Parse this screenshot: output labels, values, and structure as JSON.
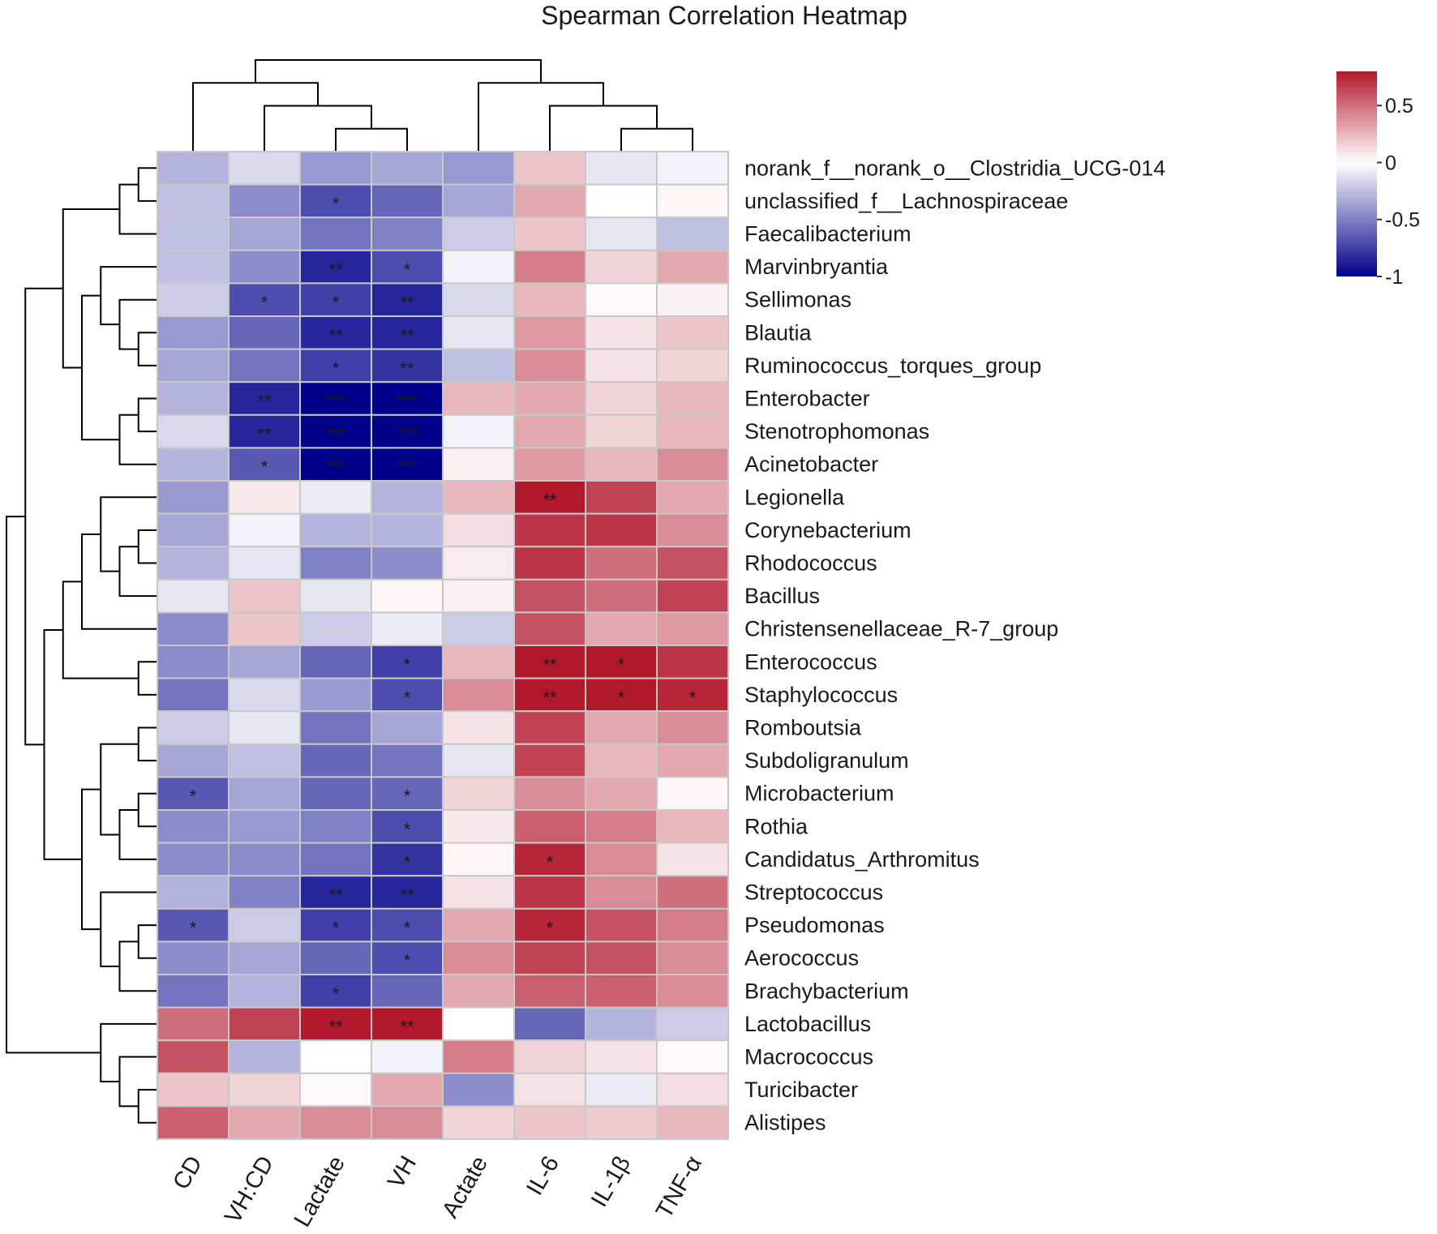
{
  "chart_data": {
    "type": "heatmap",
    "title": "Spearman Correlation Heatmap",
    "columns": [
      "CD",
      "VH:CD",
      "Lactate",
      "VH",
      "Actate",
      "IL-6",
      "IL-1β",
      "TNF-α"
    ],
    "rows": [
      "norank_f__norank_o__Clostridia_UCG-014",
      "unclassified_f__Lachnospiraceae",
      "Faecalibacterium",
      "Marvinbryantia",
      "Sellimonas",
      "Blautia",
      "Ruminococcus_torques_group",
      "Enterobacter",
      "Stenotrophomonas",
      "Acinetobacter",
      "Legionella",
      "Corynebacterium",
      "Rhodococcus",
      "Bacillus",
      "Christensenellaceae_R-7_group",
      "Enterococcus",
      "Staphylococcus",
      "Romboutsia",
      "Subdoligranulum",
      "Microbacterium",
      "Rothia",
      "Candidatus_Arthromitus",
      "Streptococcus",
      "Pseudomonas",
      "Aerococcus",
      "Brachybacterium",
      "Lactobacillus",
      "Macrococcus",
      "Turicibacter",
      "Alistipes"
    ],
    "values": [
      [
        -0.3,
        -0.15,
        -0.4,
        -0.35,
        -0.4,
        0.2,
        -0.1,
        -0.05
      ],
      [
        -0.25,
        -0.45,
        -0.7,
        -0.6,
        -0.35,
        0.3,
        0.0,
        0.03
      ],
      [
        -0.25,
        -0.35,
        -0.55,
        -0.5,
        -0.2,
        0.2,
        -0.1,
        -0.25
      ],
      [
        -0.25,
        -0.45,
        -0.85,
        -0.7,
        -0.05,
        0.45,
        0.15,
        0.3
      ],
      [
        -0.2,
        -0.7,
        -0.75,
        -0.85,
        -0.15,
        0.25,
        0.02,
        0.05
      ],
      [
        -0.4,
        -0.6,
        -0.85,
        -0.85,
        -0.1,
        0.35,
        0.1,
        0.2
      ],
      [
        -0.35,
        -0.55,
        -0.75,
        -0.8,
        -0.25,
        0.4,
        0.1,
        0.15
      ],
      [
        -0.3,
        -0.85,
        -1.0,
        -1.0,
        0.25,
        0.3,
        0.15,
        0.25
      ],
      [
        -0.15,
        -0.85,
        -1.0,
        -1.0,
        -0.05,
        0.3,
        0.15,
        0.25
      ],
      [
        -0.3,
        -0.65,
        -1.0,
        -1.0,
        0.05,
        0.35,
        0.25,
        0.4
      ],
      [
        -0.4,
        0.08,
        -0.08,
        -0.3,
        0.25,
        0.85,
        0.65,
        0.3
      ],
      [
        -0.35,
        -0.05,
        -0.3,
        -0.3,
        0.12,
        0.7,
        0.7,
        0.4
      ],
      [
        -0.3,
        -0.1,
        -0.5,
        -0.45,
        0.07,
        0.7,
        0.5,
        0.6
      ],
      [
        -0.1,
        0.2,
        -0.1,
        0.03,
        0.05,
        0.6,
        0.5,
        0.65
      ],
      [
        -0.45,
        0.2,
        -0.2,
        -0.08,
        -0.2,
        0.6,
        0.3,
        0.35
      ],
      [
        -0.45,
        -0.35,
        -0.6,
        -0.75,
        0.25,
        0.9,
        0.8,
        0.7
      ],
      [
        -0.55,
        -0.15,
        -0.4,
        -0.7,
        0.4,
        0.9,
        0.8,
        0.75
      ],
      [
        -0.2,
        -0.1,
        -0.55,
        -0.35,
        0.1,
        0.65,
        0.3,
        0.4
      ],
      [
        -0.35,
        -0.25,
        -0.6,
        -0.55,
        -0.1,
        0.65,
        0.25,
        0.3
      ],
      [
        -0.65,
        -0.35,
        -0.6,
        -0.6,
        0.15,
        0.4,
        0.3,
        0.03
      ],
      [
        -0.45,
        -0.4,
        -0.5,
        -0.7,
        0.08,
        0.55,
        0.45,
        0.25
      ],
      [
        -0.45,
        -0.45,
        -0.55,
        -0.8,
        0.03,
        0.75,
        0.4,
        0.1
      ],
      [
        -0.3,
        -0.5,
        -0.85,
        -0.85,
        0.1,
        0.7,
        0.4,
        0.5
      ],
      [
        -0.65,
        -0.2,
        -0.75,
        -0.7,
        0.3,
        0.75,
        0.6,
        0.45
      ],
      [
        -0.45,
        -0.35,
        -0.6,
        -0.7,
        0.4,
        0.65,
        0.6,
        0.4
      ],
      [
        -0.55,
        -0.3,
        -0.75,
        -0.6,
        0.3,
        0.55,
        0.55,
        0.4
      ],
      [
        0.5,
        0.65,
        0.9,
        0.9,
        0.0,
        -0.6,
        -0.3,
        -0.2
      ],
      [
        0.6,
        -0.3,
        0.0,
        -0.05,
        0.45,
        0.15,
        0.1,
        0.02
      ],
      [
        0.2,
        0.15,
        0.02,
        0.3,
        -0.45,
        0.1,
        -0.08,
        0.12
      ],
      [
        0.55,
        0.3,
        0.4,
        0.4,
        0.15,
        0.2,
        0.18,
        0.25
      ]
    ],
    "significance": [
      [
        "",
        "",
        "",
        "",
        "",
        "",
        "",
        ""
      ],
      [
        "",
        "",
        "*",
        "",
        "",
        "",
        "",
        ""
      ],
      [
        "",
        "",
        "",
        "",
        "",
        "",
        "",
        ""
      ],
      [
        "",
        "",
        "**",
        "*",
        "",
        "",
        "",
        ""
      ],
      [
        "",
        "*",
        "*",
        "**",
        "",
        "",
        "",
        ""
      ],
      [
        "",
        "",
        "**",
        "**",
        "",
        "",
        "",
        ""
      ],
      [
        "",
        "",
        "*",
        "**",
        "",
        "",
        "",
        ""
      ],
      [
        "",
        "**",
        "***",
        "***",
        "",
        "",
        "",
        ""
      ],
      [
        "",
        "**",
        "***",
        "***",
        "",
        "",
        "",
        ""
      ],
      [
        "",
        "*",
        "***",
        "***",
        "",
        "",
        "",
        ""
      ],
      [
        "",
        "",
        "",
        "",
        "",
        "**",
        "",
        ""
      ],
      [
        "",
        "",
        "",
        "",
        "",
        "",
        "",
        ""
      ],
      [
        "",
        "",
        "",
        "",
        "",
        "",
        "",
        ""
      ],
      [
        "",
        "",
        "",
        "",
        "",
        "",
        "",
        ""
      ],
      [
        "",
        "",
        "",
        "",
        "",
        "",
        "",
        ""
      ],
      [
        "",
        "",
        "",
        "*",
        "",
        "**",
        "*",
        ""
      ],
      [
        "",
        "",
        "",
        "*",
        "",
        "**",
        "*",
        "*"
      ],
      [
        "",
        "",
        "",
        "",
        "",
        "",
        "",
        ""
      ],
      [
        "",
        "",
        "",
        "",
        "",
        "",
        "",
        ""
      ],
      [
        "*",
        "",
        "",
        "*",
        "",
        "",
        "",
        ""
      ],
      [
        "",
        "",
        "",
        "*",
        "",
        "",
        "",
        ""
      ],
      [
        "",
        "",
        "",
        "*",
        "",
        "*",
        "",
        ""
      ],
      [
        "",
        "",
        "**",
        "**",
        "",
        "",
        "",
        ""
      ],
      [
        "*",
        "",
        "*",
        "*",
        "",
        "*",
        "",
        ""
      ],
      [
        "",
        "",
        "",
        "*",
        "",
        "",
        "",
        ""
      ],
      [
        "",
        "",
        "*",
        "",
        "",
        "",
        "",
        ""
      ],
      [
        "",
        "",
        "**",
        "**",
        "",
        "",
        "",
        ""
      ],
      [
        "",
        "",
        "",
        "",
        "",
        "",
        "",
        ""
      ],
      [
        "",
        "",
        "",
        "",
        "",
        "",
        "",
        ""
      ],
      [
        "",
        "",
        "",
        "",
        "",
        "",
        "",
        ""
      ]
    ],
    "colorbar": {
      "min": -1,
      "max": 0.8,
      "ticks": [
        0.5,
        0,
        -0.5,
        -1
      ],
      "tick_labels": [
        "0.5",
        "0",
        "-0.5",
        "-1"
      ],
      "colors": {
        "low": "#00008b",
        "mid": "#ffffff",
        "high": "#b2182b"
      }
    },
    "column_dendrogram": [
      [
        2,
        3
      ],
      [
        1,
        8
      ],
      [
        6,
        7
      ],
      [
        5,
        10
      ],
      [
        0,
        9
      ],
      [
        4,
        11
      ],
      [
        12,
        13
      ]
    ],
    "row_dendrogram": [
      [
        0,
        1
      ],
      [
        30,
        2
      ],
      [
        7,
        8
      ],
      [
        32,
        9
      ],
      [
        5,
        6
      ],
      [
        4,
        34
      ],
      [
        3,
        35
      ],
      [
        33,
        36
      ],
      [
        31,
        37
      ],
      [
        11,
        12
      ],
      [
        39,
        13
      ],
      [
        10,
        40
      ],
      [
        41,
        14
      ],
      [
        15,
        16
      ],
      [
        42,
        43
      ],
      [
        17,
        18
      ],
      [
        19,
        20
      ],
      [
        46,
        21
      ],
      [
        45,
        47
      ],
      [
        23,
        24
      ],
      [
        49,
        25
      ],
      [
        22,
        50
      ],
      [
        48,
        51
      ],
      [
        44,
        52
      ],
      [
        38,
        53
      ],
      [
        28,
        29
      ],
      [
        27,
        55
      ],
      [
        26,
        56
      ],
      [
        54,
        57
      ]
    ]
  }
}
